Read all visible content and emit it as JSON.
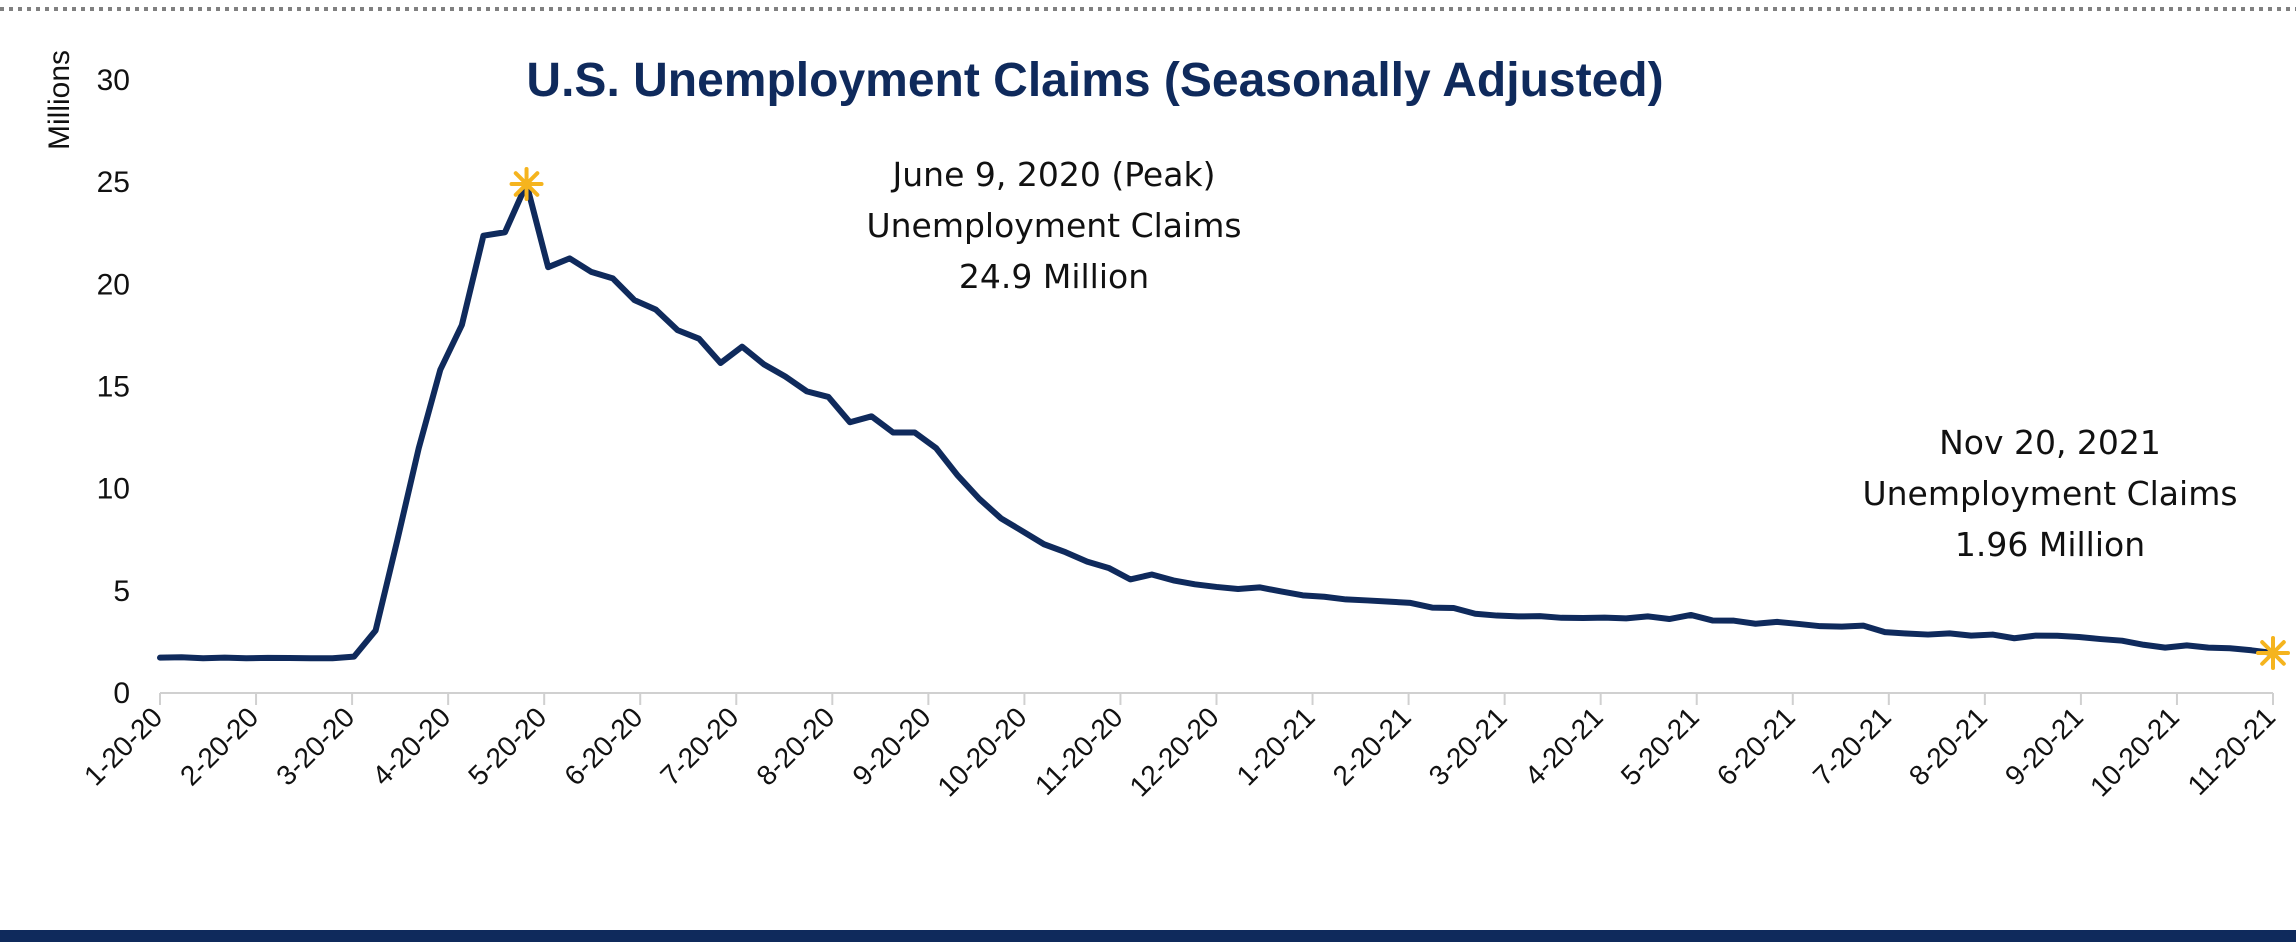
{
  "colors": {
    "line": "#0f2a5c",
    "marker": "#f5b41e",
    "title": "#0f2a5c",
    "footer_bar": "#0f2a5c",
    "dotted_rule": "#808080",
    "axis": "#d0d0d0"
  },
  "chart_data": {
    "type": "line",
    "title": "U.S. Unemployment Claims (Seasonally Adjusted)",
    "ylabel": "Millions",
    "xlabel": "",
    "ylim": [
      0,
      30
    ],
    "yticks": [
      0,
      5,
      10,
      15,
      20,
      25,
      30
    ],
    "grid": false,
    "legend": "none",
    "x_tick_labels": [
      "1-20-20",
      "2-20-20",
      "3-20-20",
      "4-20-20",
      "5-20-20",
      "6-20-20",
      "7-20-20",
      "8-20-20",
      "9-20-20",
      "10-20-20",
      "11-20-20",
      "12-20-20",
      "1-20-21",
      "2-20-21",
      "3-20-21",
      "4-20-21",
      "5-20-21",
      "6-20-21",
      "7-20-21",
      "8-20-21",
      "9-20-21",
      "10-20-21",
      "11-20-21"
    ],
    "series": [
      {
        "values": [
          1.73,
          1.75,
          1.7,
          1.73,
          1.7,
          1.72,
          1.71,
          1.7,
          1.7,
          1.78,
          3.06,
          7.45,
          11.98,
          15.82,
          18.01,
          22.38,
          22.55,
          24.91,
          20.84,
          21.27,
          20.61,
          20.29,
          19.23,
          18.76,
          17.76,
          17.34,
          16.15,
          16.95,
          16.09,
          15.49,
          14.76,
          14.49,
          13.25,
          13.54,
          12.75,
          12.75,
          11.98,
          10.64,
          9.5,
          8.55,
          7.92,
          7.28,
          6.89,
          6.43,
          6.12,
          5.56,
          5.8,
          5.51,
          5.32,
          5.19,
          5.09,
          5.17,
          4.97,
          4.78,
          4.71,
          4.58,
          4.53,
          4.47,
          4.41,
          4.18,
          4.16,
          3.88,
          3.79,
          3.75,
          3.76,
          3.68,
          3.67,
          3.69,
          3.65,
          3.75,
          3.62,
          3.82,
          3.55,
          3.54,
          3.39,
          3.48,
          3.38,
          3.27,
          3.25,
          3.3,
          2.98,
          2.91,
          2.86,
          2.92,
          2.81,
          2.86,
          2.68,
          2.81,
          2.8,
          2.74,
          2.64,
          2.56,
          2.36,
          2.22,
          2.33,
          2.22,
          2.19,
          2.09,
          1.96
        ]
      }
    ],
    "annotations": [
      {
        "lines": [
          "June 9, 2020 (Peak)",
          "Unemployment Claims",
          "24.9 Million"
        ],
        "point_value": 24.91
      },
      {
        "lines": [
          "Nov 20, 2021",
          "Unemployment Claims",
          "1.96 Million"
        ],
        "point_value": 1.96
      }
    ]
  }
}
